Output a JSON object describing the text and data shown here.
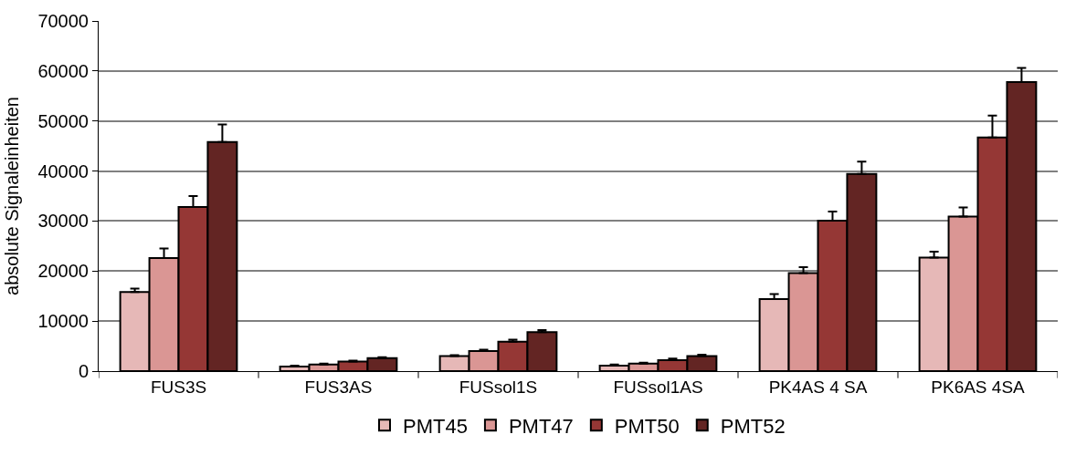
{
  "chart_data": {
    "type": "bar",
    "ylabel": "absolute Signaleinheiten",
    "categories": [
      "FUS3S",
      "FUS3AS",
      "FUSsol1S",
      "FUSsol1AS",
      "PK4AS 4 SA",
      "PK6AS 4SA"
    ],
    "series": [
      {
        "name": "PMT45",
        "color": "#e6b8b7",
        "values": [
          15800,
          900,
          3000,
          1100,
          14400,
          22700
        ],
        "errors": [
          [
            15800,
            16500
          ],
          [
            900,
            1100
          ],
          [
            3000,
            3200
          ],
          [
            1100,
            1300
          ],
          [
            14400,
            15400
          ],
          [
            22700,
            23900
          ]
        ]
      },
      {
        "name": "PMT47",
        "color": "#da9694",
        "values": [
          22600,
          1300,
          4000,
          1500,
          19600,
          30900
        ],
        "errors": [
          [
            22600,
            24500
          ],
          [
            1300,
            1500
          ],
          [
            4000,
            4300
          ],
          [
            1500,
            1700
          ],
          [
            19600,
            20800
          ],
          [
            30900,
            32700
          ]
        ]
      },
      {
        "name": "PMT50",
        "color": "#953735",
        "values": [
          32800,
          1900,
          5900,
          2200,
          30100,
          46700
        ],
        "errors": [
          [
            32800,
            35000
          ],
          [
            1900,
            2100
          ],
          [
            5900,
            6300
          ],
          [
            2200,
            2500
          ],
          [
            30100,
            31900
          ],
          [
            46700,
            51100
          ]
        ]
      },
      {
        "name": "PMT52",
        "color": "#632523",
        "values": [
          45800,
          2600,
          7800,
          3000,
          39400,
          57800
        ],
        "errors": [
          [
            45800,
            49300
          ],
          [
            2600,
            2800
          ],
          [
            7800,
            8200
          ],
          [
            3000,
            3300
          ],
          [
            39400,
            41900
          ],
          [
            57800,
            60600
          ]
        ]
      }
    ],
    "ylim": [
      0,
      70000
    ],
    "yticks": [
      0,
      10000,
      20000,
      30000,
      40000,
      50000,
      60000,
      70000
    ],
    "grid": "y",
    "legend": "bottom"
  }
}
